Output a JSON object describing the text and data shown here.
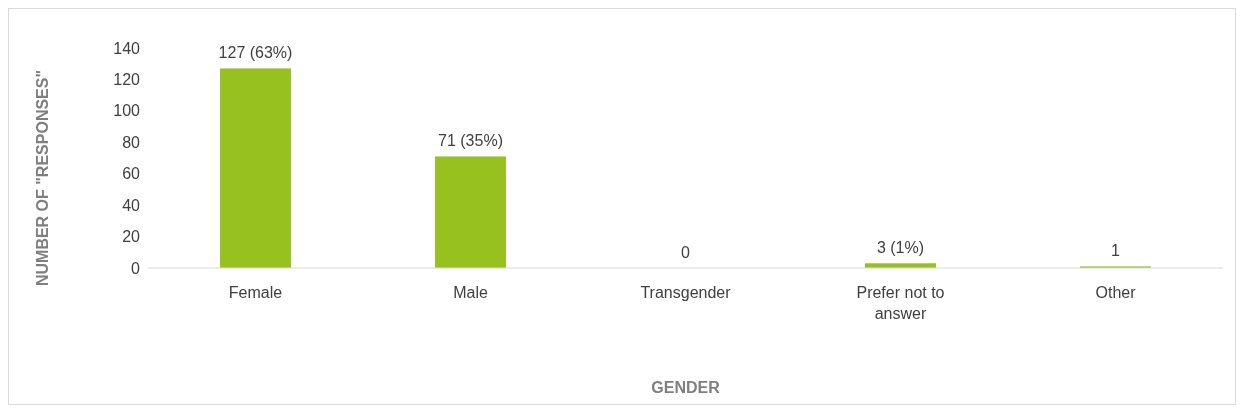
{
  "chart_data": {
    "type": "bar",
    "xlabel": "GENDER",
    "ylabel": "NUMBER OF \"RESPONSES\"",
    "categories": [
      "Female",
      "Male",
      "Transgender",
      "Prefer not to answer",
      "Other"
    ],
    "values": [
      127,
      71,
      0,
      3,
      1
    ],
    "value_labels": [
      "127 (63%)",
      "71 (35%)",
      "0",
      "3 (1%)",
      "1"
    ],
    "color": "#97c11f",
    "ylim": [
      0,
      140
    ],
    "yticks": [
      0,
      20,
      40,
      60,
      80,
      100,
      120,
      140
    ],
    "grid": false
  }
}
